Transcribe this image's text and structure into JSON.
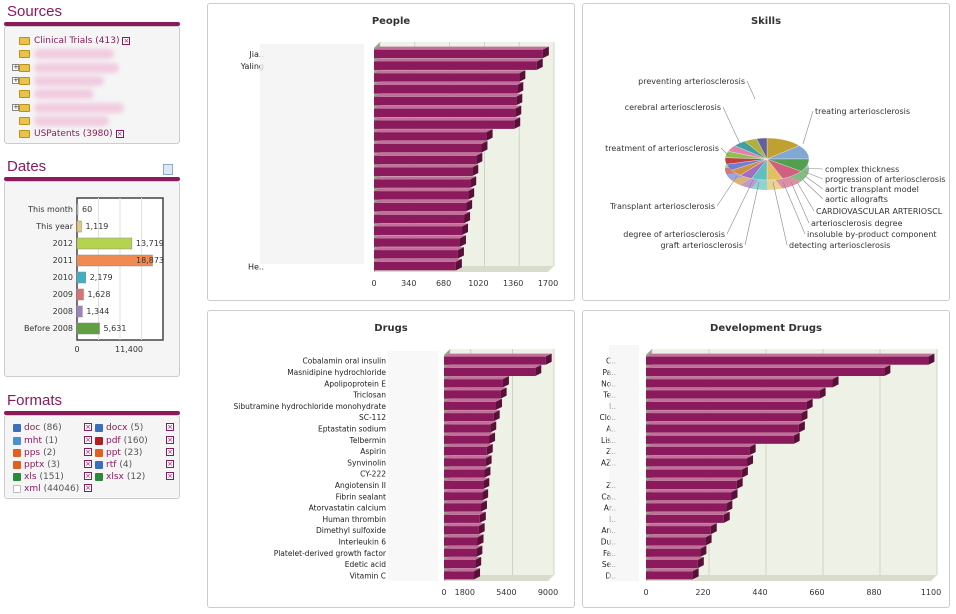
{
  "sources": {
    "title": "Sources",
    "items": [
      {
        "label": "Clinical Trials",
        "count": "(413)"
      },
      {
        "label": "USPatents",
        "count": "(3980)"
      }
    ]
  },
  "dates": {
    "title": "Dates",
    "axis": [
      "0",
      "11,400"
    ],
    "rows": [
      {
        "label": "This month",
        "value": 60,
        "text": "60",
        "color": "#cccccc"
      },
      {
        "label": "This year",
        "value": 1119,
        "text": "1,119",
        "color": "#e8c870"
      },
      {
        "label": "2012",
        "value": 13719,
        "text": "13,719",
        "color": "#b4d450"
      },
      {
        "label": "2011",
        "value": 18873,
        "text": "18,873",
        "color": "#f08a50"
      },
      {
        "label": "2010",
        "value": 2179,
        "text": "2,179",
        "color": "#40b0c0"
      },
      {
        "label": "2009",
        "value": 1628,
        "text": "1,628",
        "color": "#e07070"
      },
      {
        "label": "2008",
        "value": 1344,
        "text": "1,344",
        "color": "#a080c0"
      },
      {
        "label": "Before 2008",
        "value": 5631,
        "text": "5,631",
        "color": "#60a040"
      }
    ]
  },
  "formats": {
    "title": "Formats",
    "items": [
      {
        "label": "doc",
        "count": "(86)",
        "color": "#3a6fc0"
      },
      {
        "label": "docx",
        "count": "(5)",
        "color": "#3a6fc0"
      },
      {
        "label": "mht",
        "count": "(1)",
        "color": "#4a90d0"
      },
      {
        "label": "pdf",
        "count": "(160)",
        "color": "#b02020"
      },
      {
        "label": "pps",
        "count": "(2)",
        "color": "#e06020"
      },
      {
        "label": "ppt",
        "count": "(23)",
        "color": "#e06020"
      },
      {
        "label": "pptx",
        "count": "(3)",
        "color": "#e06020"
      },
      {
        "label": "rtf",
        "count": "(4)",
        "color": "#3a6fc0"
      },
      {
        "label": "xls",
        "count": "(151)",
        "color": "#2a8a3a"
      },
      {
        "label": "xlsx",
        "count": "(12)",
        "color": "#2a8a3a"
      },
      {
        "label": "xml",
        "count": "(44046)",
        "color": "#dddddd"
      }
    ]
  },
  "chart_data": [
    {
      "type": "bar",
      "title": "People",
      "orientation": "horizontal",
      "categories": [
        "Jia..",
        "Yaling",
        "",
        "",
        "",
        "",
        "",
        "",
        "",
        "",
        "",
        "",
        "",
        "",
        "",
        "",
        "",
        "",
        "He.."
      ],
      "values": [
        1650,
        1590,
        1420,
        1400,
        1390,
        1380,
        1370,
        1100,
        1050,
        1000,
        960,
        940,
        920,
        900,
        880,
        860,
        840,
        820,
        800
      ],
      "xticks": [
        "0",
        "340",
        "680",
        "1020",
        "1360",
        "1700"
      ],
      "xlim": [
        0,
        1700
      ]
    },
    {
      "type": "pie",
      "title": "Skills",
      "labels": [
        "preventing arteriosclerosis",
        "treating arteriosclerosis",
        "cerebral arteriosclerosis",
        "treatment of arteriosclerosis",
        "complex thickness",
        "progression of arteriosclerosis",
        "aortic transplant model",
        "aortic allografts",
        "CARDIOVASCULAR ARTERIOSCL",
        "arteriosclerosis degree",
        "insoluble by-product component",
        "detecting arteriosclerosis",
        "graft arteriosclerosis",
        "degree of arteriosclerosis",
        "Transplant arteriosclerosis"
      ],
      "values": [
        14,
        11,
        10,
        9,
        6,
        6,
        5,
        5,
        5,
        5,
        5,
        5,
        5,
        5,
        4
      ],
      "colors": [
        "#c0a030",
        "#80a8d0",
        "#50a050",
        "#d06080",
        "#e0c060",
        "#60c0c0",
        "#a070c0",
        "#d09040",
        "#7080d0",
        "#c04040",
        "#90c050",
        "#e080b0",
        "#40a0a0",
        "#b0b040",
        "#6060a0"
      ]
    },
    {
      "type": "bar",
      "title": "Drugs",
      "orientation": "horizontal",
      "categories": [
        "Cobalamin oral insulin",
        "Masnidipine hydrochloride",
        "Apolipoprotein E",
        "Triclosan",
        "Sibutramine hydrochloride monohydrate",
        "SC-112",
        "Eptastatin sodium",
        "Telbermin",
        "Aspirin",
        "Synvinolin",
        "CY-222",
        "Angiotensin II",
        "Fibrin sealant",
        "Atorvastatin calcium",
        "Human thrombin",
        "Dimethyl sulfoxide",
        "Interleukin 6",
        "Platelet-derived growth factor",
        "Edetic acid",
        "Vitamin C"
      ],
      "values": [
        8800,
        7900,
        5100,
        4900,
        4500,
        4300,
        4000,
        3900,
        3700,
        3600,
        3500,
        3400,
        3300,
        3200,
        3100,
        3000,
        2900,
        2800,
        2700,
        2600
      ],
      "xticks": [
        "0",
        "1800",
        "5400",
        "9000"
      ],
      "xlim": [
        0,
        9000
      ]
    },
    {
      "type": "bar",
      "title": "Development Drugs",
      "orientation": "horizontal",
      "categories": [
        "C..",
        "Pa..",
        "No..",
        "Te..",
        "I..",
        "Clo..",
        "A..",
        "Lis..",
        "Z..",
        "AZ..",
        "",
        "Z..",
        "Ca..",
        "Ar..",
        "I..",
        "An..",
        "Du..",
        "Fa..",
        "Se..",
        "D.."
      ],
      "values": [
        1090,
        920,
        720,
        670,
        620,
        600,
        590,
        570,
        400,
        390,
        370,
        350,
        330,
        310,
        300,
        250,
        230,
        210,
        200,
        180
      ],
      "xticks": [
        "0",
        "220",
        "440",
        "660",
        "880",
        "1100"
      ],
      "xlim": [
        0,
        1100
      ]
    }
  ]
}
